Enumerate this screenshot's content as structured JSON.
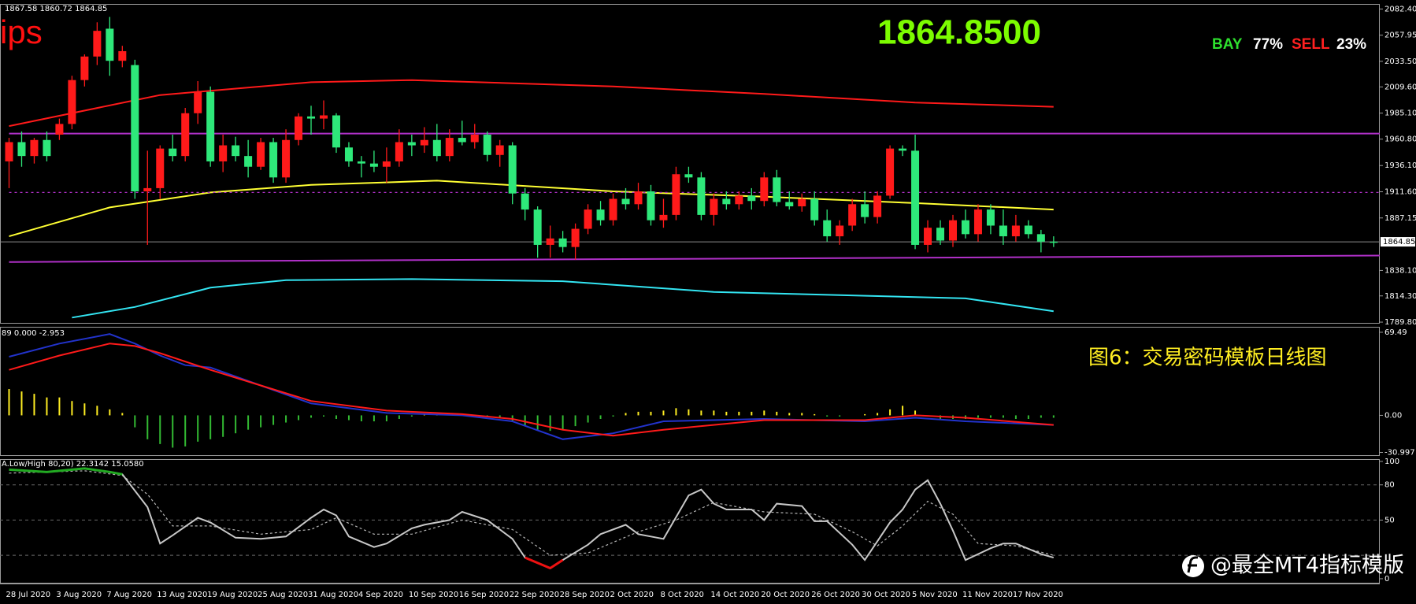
{
  "chart_data": [
    {
      "type": "candlestick",
      "info": "1867.58 1860.72 1864.85",
      "symbol": "ips",
      "price_display": "1864.8500",
      "sentiment": [
        {
          "label": "BAY",
          "color": "#2ee02e"
        },
        {
          "label": "77%",
          "color": "#ffffff"
        },
        {
          "label": "SELL",
          "color": "#ff2020"
        },
        {
          "label": "23%",
          "color": "#ffffff"
        }
      ],
      "categories": [
        "28 Jul 2020",
        null,
        null,
        null,
        "3 Aug 2020",
        null,
        null,
        null,
        "7 Aug 2020",
        null,
        null,
        null,
        "13 Aug 2020",
        null,
        null,
        null,
        "19 Aug 2020",
        null,
        null,
        null,
        "25 Aug 2020",
        null,
        null,
        null,
        "31 Aug 2020",
        null,
        null,
        null,
        "4 Sep 2020",
        null,
        null,
        null,
        "10 Sep 2020",
        null,
        null,
        null,
        "16 Sep 2020",
        null,
        null,
        null,
        "22 Sep 2020",
        null,
        null,
        null,
        "28 Sep 2020",
        null,
        null,
        null,
        "2 Oct 2020",
        null,
        null,
        null,
        "8 Oct 2020",
        null,
        null,
        null,
        "14 Oct 2020",
        null,
        null,
        null,
        "20 Oct 2020",
        null,
        null,
        null,
        "26 Oct 2020",
        null,
        null,
        null,
        "30 Oct 2020",
        null,
        null,
        null,
        "5 Nov 2020",
        null,
        null,
        null,
        "11 Nov 2020",
        null,
        null,
        null,
        "17 Nov 2020",
        null,
        null,
        null
      ],
      "open": [
        1940,
        1958,
        1945,
        1960,
        1965,
        1975,
        2016,
        2038,
        2064,
        2034,
        2030,
        1912,
        1915,
        1952,
        1945,
        1985,
        2005,
        1940,
        1955,
        1945,
        1935,
        1958,
        1925,
        1960,
        1982,
        1980,
        1983,
        1953,
        1940,
        1938,
        1935,
        1940,
        1958,
        1955,
        1960,
        1945,
        1962,
        1958,
        1965,
        1946,
        1955,
        1910,
        1895,
        1862,
        1868,
        1860,
        1877,
        1895,
        1885,
        1905,
        1900,
        1912,
        1885,
        1890,
        1928,
        1925,
        1890,
        1905,
        1900,
        1908,
        1903,
        1925,
        1902,
        1898,
        1905,
        1885,
        1870,
        1880,
        1900,
        1888,
        1908,
        1952,
        1950,
        1862,
        1878,
        1866,
        1885,
        1872,
        1895,
        1880,
        1870,
        1880,
        1872,
        1865
      ],
      "high": [
        1962,
        1968,
        1962,
        1968,
        1980,
        2020,
        2040,
        2070,
        2075,
        2048,
        2035,
        1950,
        1955,
        1965,
        1990,
        2015,
        2010,
        1965,
        1963,
        1960,
        1962,
        1962,
        1970,
        1985,
        1992,
        1997,
        1985,
        1958,
        1945,
        1950,
        1953,
        1970,
        1965,
        1972,
        1975,
        1970,
        1978,
        1975,
        1968,
        1960,
        1958,
        1915,
        1898,
        1880,
        1875,
        1882,
        1900,
        1903,
        1910,
        1915,
        1920,
        1918,
        1905,
        1935,
        1935,
        1930,
        1910,
        1912,
        1912,
        1915,
        1930,
        1932,
        1912,
        1910,
        1912,
        1895,
        1885,
        1905,
        1912,
        1912,
        1955,
        1955,
        1965,
        1885,
        1885,
        1890,
        1895,
        1900,
        1900,
        1895,
        1890,
        1885,
        1876,
        1870
      ],
      "low": [
        1915,
        1935,
        1938,
        1940,
        1960,
        1970,
        2010,
        2030,
        2020,
        2028,
        1905,
        1862,
        1905,
        1940,
        1940,
        1975,
        1935,
        1930,
        1940,
        1925,
        1932,
        1920,
        1920,
        1955,
        1965,
        1970,
        1948,
        1935,
        1925,
        1930,
        1920,
        1935,
        1945,
        1948,
        1940,
        1940,
        1955,
        1952,
        1940,
        1935,
        1900,
        1885,
        1850,
        1850,
        1855,
        1848,
        1872,
        1880,
        1880,
        1895,
        1895,
        1880,
        1878,
        1885,
        1920,
        1885,
        1880,
        1895,
        1895,
        1895,
        1898,
        1898,
        1895,
        1893,
        1880,
        1865,
        1862,
        1875,
        1882,
        1882,
        1905,
        1945,
        1858,
        1855,
        1862,
        1860,
        1868,
        1865,
        1872,
        1862,
        1865,
        1868,
        1855,
        1860
      ],
      "close": [
        1958,
        1945,
        1960,
        1945,
        1975,
        2016,
        2038,
        2062,
        2034,
        2043,
        1912,
        1915,
        1952,
        1945,
        1985,
        2005,
        1940,
        1955,
        1945,
        1935,
        1958,
        1925,
        1960,
        1982,
        1980,
        1983,
        1953,
        1940,
        1938,
        1935,
        1940,
        1958,
        1955,
        1960,
        1945,
        1962,
        1958,
        1965,
        1946,
        1955,
        1910,
        1895,
        1862,
        1868,
        1860,
        1877,
        1895,
        1885,
        1905,
        1900,
        1912,
        1885,
        1890,
        1928,
        1925,
        1890,
        1905,
        1900,
        1908,
        1903,
        1925,
        1902,
        1898,
        1905,
        1885,
        1870,
        1880,
        1900,
        1888,
        1908,
        1952,
        1950,
        1862,
        1878,
        1866,
        1885,
        1872,
        1895,
        1880,
        1870,
        1880,
        1872,
        1865,
        1864.85
      ],
      "up_color": "#ff1a1a",
      "down_color": "#2ee87a",
      "lines": [
        {
          "color": "#ff1a1a",
          "x": [
            0,
            12,
            24,
            32,
            48,
            60,
            72,
            83
          ],
          "values": [
            1973,
            2002,
            2014,
            2016,
            2010,
            2003,
            1995,
            1991
          ]
        },
        {
          "color": "#ffff33",
          "x": [
            0,
            8,
            16,
            24,
            34,
            48,
            60,
            72,
            83
          ],
          "values": [
            1870,
            1897,
            1911,
            1918,
            1922,
            1912,
            1907,
            1901,
            1895
          ]
        },
        {
          "color": "#33e5f2",
          "x": [
            5,
            10,
            16,
            22,
            32,
            44,
            56,
            66,
            76,
            83
          ],
          "values": [
            1794,
            1804,
            1822,
            1829,
            1830,
            1828,
            1818,
            1815,
            1812,
            1800
          ]
        },
        {
          "color": "#b030c8",
          "x": [
            0,
            109
          ],
          "values": [
            1966,
            1966
          ]
        },
        {
          "color": "#b030c8",
          "x": [
            0,
            109
          ],
          "values": [
            1911,
            1911
          ],
          "dash": true
        },
        {
          "color": "#b030c8",
          "x": [
            0,
            109
          ],
          "values": [
            1846,
            1852
          ]
        }
      ],
      "last": 1864.85,
      "ylim": [
        1789.1,
        2086.4
      ],
      "yticks": [
        {
          "value": 2082.4,
          "label": "2082.40"
        },
        2057.95,
        {
          "value": 2033.5,
          "label": "2033.50"
        },
        {
          "value": 2009.6,
          "label": "2009.60"
        },
        {
          "value": 1985.1,
          "label": "1985.10"
        },
        {
          "value": 1960.8,
          "label": "1960.80"
        },
        {
          "value": 1936.1,
          "label": "1936.10"
        },
        {
          "value": 1911.6,
          "label": "1911.60"
        },
        1887.15,
        {
          "value": 1838.1,
          "label": "1838.10"
        },
        {
          "value": 1814.3,
          "label": "1814.30"
        },
        {
          "value": 1789.8,
          "label": "1789.80"
        }
      ]
    },
    {
      "type": "macd",
      "info": "89 0.000 -2.953",
      "annotation": "图6：交易密码模板日线图",
      "values": [
        22,
        20,
        18,
        15,
        15,
        12,
        10,
        8,
        5,
        2,
        -10,
        -20,
        -24,
        -27,
        -26,
        -22,
        -20,
        -18,
        -15,
        -12,
        -10,
        -8,
        -6,
        -4,
        -2,
        -1,
        -3,
        -4,
        -5,
        -5,
        -5,
        -3,
        -1,
        1,
        1,
        1,
        1,
        0,
        -1,
        -2,
        -5,
        -9,
        -12,
        -13,
        -12,
        -9,
        -6,
        -3,
        -1,
        2,
        3,
        3,
        4,
        6,
        5,
        4,
        4,
        3,
        3,
        3,
        4,
        3,
        2,
        2,
        1,
        -1,
        -1,
        0,
        1,
        2,
        5,
        8,
        4,
        -1,
        -3,
        -3,
        -3,
        -2,
        -2,
        -2,
        -3,
        -3,
        -2,
        -2
      ],
      "pos_color": "#ffee22",
      "neg_color": "#33bb33",
      "lines": [
        {
          "color": "#2233cc",
          "x": [
            0,
            4,
            8,
            10,
            12,
            14,
            16,
            20,
            24,
            30,
            36,
            40,
            44,
            48,
            52,
            60,
            68,
            72,
            76,
            83
          ],
          "values": [
            49,
            60,
            68,
            60,
            50,
            42,
            40,
            25,
            10,
            2,
            0,
            -5,
            -20,
            -15,
            -5,
            -3,
            -5,
            -2,
            -5,
            -8
          ]
        },
        {
          "color": "#ff1a1a",
          "x": [
            0,
            4,
            8,
            10,
            12,
            16,
            20,
            24,
            30,
            36,
            40,
            44,
            48,
            52,
            60,
            68,
            72,
            76,
            83
          ],
          "values": [
            38,
            50,
            60,
            58,
            52,
            38,
            25,
            12,
            4,
            1,
            -3,
            -12,
            -17,
            -12,
            -4,
            -4,
            0,
            -2,
            -8
          ]
        }
      ],
      "ylim": [
        -33.3,
        73.4
      ],
      "yticks": [
        69.49,
        {
          "value": 0,
          "label": "0.00"
        },
        -30.997
      ]
    },
    {
      "type": "stochastic",
      "info": "A.Low/High 80,20) 22.3142 15.0580",
      "main": {
        "color": "#c8c8c8",
        "x": [
          0,
          3,
          6,
          8,
          9,
          11,
          12,
          13,
          15,
          16,
          18,
          20,
          22,
          24,
          25,
          26,
          27,
          29,
          30,
          32,
          33,
          35,
          36,
          38,
          40,
          41,
          43,
          44,
          46,
          47,
          49,
          50,
          52,
          54,
          55,
          56,
          57,
          59,
          60,
          61,
          63,
          64,
          65,
          67,
          68,
          69,
          70,
          71,
          72,
          73,
          74,
          75,
          76,
          77,
          78,
          79,
          80,
          82,
          83
        ],
        "values": [
          93,
          91,
          94,
          91,
          89,
          61,
          30,
          37,
          52,
          48,
          35,
          34,
          36,
          52,
          59,
          54,
          36,
          27,
          30,
          43,
          46,
          50,
          57,
          50,
          34,
          18,
          9,
          16,
          29,
          38,
          46,
          38,
          34,
          71,
          76,
          64,
          59,
          59,
          50,
          64,
          62,
          49,
          49,
          29,
          16,
          32,
          48,
          59,
          76,
          84,
          64,
          41,
          16,
          21,
          26,
          30,
          30,
          21,
          18
        ]
      },
      "signal": {
        "color": "#b4b4b4",
        "x": [
          0,
          6,
          9,
          11,
          13,
          16,
          20,
          24,
          26,
          29,
          32,
          36,
          40,
          43,
          46,
          50,
          53,
          56,
          60,
          64,
          67,
          69,
          71,
          73,
          75,
          77,
          80,
          83
        ],
        "values": [
          90,
          92,
          88,
          72,
          45,
          45,
          38,
          42,
          52,
          38,
          38,
          50,
          42,
          20,
          22,
          40,
          50,
          65,
          57,
          55,
          40,
          28,
          45,
          66,
          55,
          30,
          28,
          20
        ]
      },
      "over_color": "#22aa22",
      "under_color": "#ee1111",
      "levels": [
        80,
        50,
        20
      ],
      "ylim": [
        -3.4,
        101.3
      ],
      "yticks": [
        100,
        80,
        50,
        0
      ]
    }
  ],
  "watermark": "@最全MT4指标模版"
}
